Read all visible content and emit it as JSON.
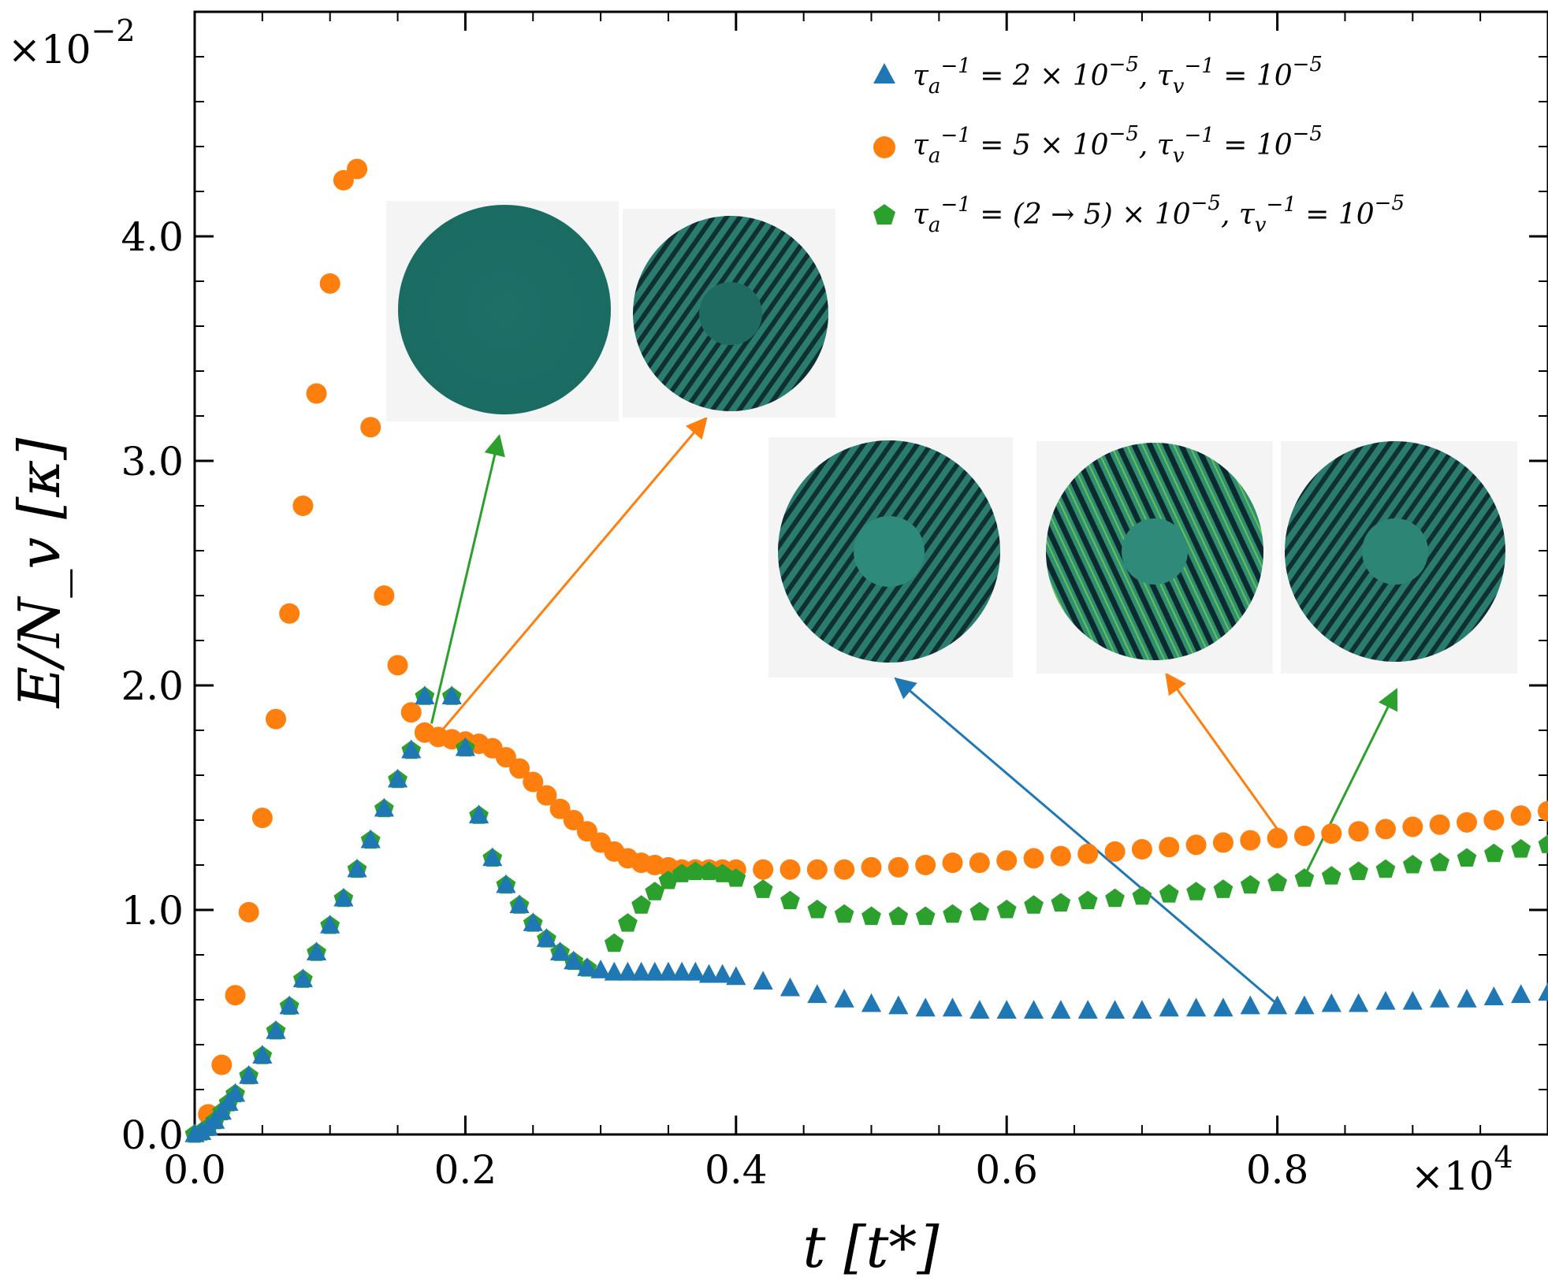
{
  "chart_data": {
    "type": "scatter",
    "title": "",
    "xlabel": "t [t*]",
    "ylabel": "E/N_v [κ]",
    "x_multiplier": "×10",
    "x_multiplier_exp": "4",
    "y_multiplier": "×10",
    "y_multiplier_exp": "−2",
    "xlim": [
      0.0,
      1.0
    ],
    "ylim": [
      0.0,
      5.0
    ],
    "x_ticks": [
      0.0,
      0.2,
      0.4,
      0.6,
      0.8
    ],
    "x_tick_labels": [
      "0.0",
      "0.2",
      "0.4",
      "0.6",
      "0.8"
    ],
    "y_ticks": [
      0.0,
      1.0,
      2.0,
      3.0,
      4.0
    ],
    "y_tick_labels": [
      "0.0",
      "1.0",
      "2.0",
      "3.0",
      "4.0"
    ],
    "legend_position": "top-right",
    "series": [
      {
        "name": "τa⁻¹ = 2 × 10⁻⁵, τv⁻¹ = 10⁻⁵",
        "legend_parts": [
          "τ",
          "a",
          "−1",
          " = 2 × 10",
          "−5",
          ", τ",
          "v",
          "−1",
          " = 10",
          "−5"
        ],
        "color": "#1f77b4",
        "marker": "triangle",
        "x": [
          0.0,
          0.005,
          0.01,
          0.015,
          0.02,
          0.025,
          0.03,
          0.04,
          0.05,
          0.06,
          0.07,
          0.08,
          0.09,
          0.1,
          0.11,
          0.12,
          0.13,
          0.14,
          0.15,
          0.16,
          0.17,
          0.19,
          0.2,
          0.21,
          0.22,
          0.23,
          0.24,
          0.25,
          0.26,
          0.27,
          0.28,
          0.29,
          0.3,
          0.31,
          0.32,
          0.33,
          0.34,
          0.35,
          0.36,
          0.37,
          0.38,
          0.39,
          0.4,
          0.42,
          0.44,
          0.46,
          0.48,
          0.5,
          0.52,
          0.54,
          0.56,
          0.58,
          0.6,
          0.62,
          0.64,
          0.66,
          0.68,
          0.7,
          0.72,
          0.74,
          0.76,
          0.78,
          0.8,
          0.82,
          0.84,
          0.86,
          0.88,
          0.9,
          0.92,
          0.94,
          0.96,
          0.98,
          1.0
        ],
        "y": [
          0.0,
          0.01,
          0.03,
          0.06,
          0.1,
          0.14,
          0.18,
          0.26,
          0.35,
          0.46,
          0.57,
          0.69,
          0.81,
          0.93,
          1.05,
          1.18,
          1.31,
          1.45,
          1.58,
          1.71,
          1.95,
          1.95,
          1.72,
          1.42,
          1.23,
          1.11,
          1.02,
          0.94,
          0.87,
          0.81,
          0.77,
          0.74,
          0.73,
          0.72,
          0.72,
          0.72,
          0.72,
          0.72,
          0.72,
          0.72,
          0.71,
          0.71,
          0.7,
          0.68,
          0.65,
          0.62,
          0.6,
          0.58,
          0.57,
          0.56,
          0.56,
          0.55,
          0.55,
          0.55,
          0.55,
          0.55,
          0.55,
          0.55,
          0.56,
          0.56,
          0.56,
          0.57,
          0.57,
          0.57,
          0.58,
          0.58,
          0.59,
          0.59,
          0.6,
          0.6,
          0.61,
          0.62,
          0.63
        ]
      },
      {
        "name": "τa⁻¹ = 5 × 10⁻⁵, τv⁻¹ = 10⁻⁵",
        "legend_parts": [
          "τ",
          "a",
          "−1",
          " = 5 × 10",
          "−5",
          ", τ",
          "v",
          "−1",
          " = 10",
          "−5"
        ],
        "color": "#ff7f0e",
        "marker": "circle",
        "x": [
          0.01,
          0.02,
          0.03,
          0.04,
          0.05,
          0.06,
          0.07,
          0.08,
          0.09,
          0.1,
          0.11,
          0.12,
          0.13,
          0.14,
          0.15,
          0.16,
          0.17,
          0.18,
          0.19,
          0.2,
          0.21,
          0.22,
          0.23,
          0.24,
          0.25,
          0.26,
          0.27,
          0.28,
          0.29,
          0.3,
          0.31,
          0.32,
          0.33,
          0.34,
          0.35,
          0.36,
          0.37,
          0.38,
          0.39,
          0.4,
          0.42,
          0.44,
          0.46,
          0.48,
          0.5,
          0.52,
          0.54,
          0.56,
          0.58,
          0.6,
          0.62,
          0.64,
          0.66,
          0.68,
          0.7,
          0.72,
          0.74,
          0.76,
          0.78,
          0.8,
          0.82,
          0.84,
          0.86,
          0.88,
          0.9,
          0.92,
          0.94,
          0.96,
          0.98,
          1.0
        ],
        "y": [
          0.09,
          0.31,
          0.62,
          0.99,
          1.41,
          1.85,
          2.32,
          2.8,
          3.3,
          3.79,
          4.25,
          4.3,
          3.15,
          2.4,
          2.09,
          1.88,
          1.79,
          1.77,
          1.76,
          1.75,
          1.74,
          1.72,
          1.68,
          1.63,
          1.57,
          1.51,
          1.45,
          1.4,
          1.35,
          1.3,
          1.26,
          1.23,
          1.21,
          1.2,
          1.19,
          1.18,
          1.18,
          1.18,
          1.18,
          1.18,
          1.18,
          1.18,
          1.18,
          1.18,
          1.19,
          1.19,
          1.2,
          1.21,
          1.21,
          1.22,
          1.23,
          1.24,
          1.25,
          1.26,
          1.27,
          1.28,
          1.29,
          1.3,
          1.31,
          1.32,
          1.33,
          1.34,
          1.35,
          1.36,
          1.37,
          1.38,
          1.39,
          1.4,
          1.42,
          1.44
        ]
      },
      {
        "name": "τa⁻¹ = (2 → 5) × 10⁻⁵, τv⁻¹ = 10⁻⁵",
        "legend_parts": [
          "τ",
          "a",
          "−1",
          " = (2 → 5) × 10",
          "−5",
          ", τ",
          "v",
          "−1",
          " = 10",
          "−5"
        ],
        "color": "#2ca02c",
        "marker": "pentagon",
        "x": [
          0.0,
          0.005,
          0.01,
          0.015,
          0.02,
          0.025,
          0.03,
          0.04,
          0.05,
          0.06,
          0.07,
          0.08,
          0.09,
          0.1,
          0.11,
          0.12,
          0.13,
          0.14,
          0.15,
          0.16,
          0.17,
          0.19,
          0.2,
          0.21,
          0.22,
          0.23,
          0.24,
          0.25,
          0.26,
          0.27,
          0.28,
          0.29,
          0.31,
          0.32,
          0.33,
          0.34,
          0.35,
          0.36,
          0.37,
          0.38,
          0.39,
          0.4,
          0.42,
          0.44,
          0.46,
          0.48,
          0.5,
          0.52,
          0.54,
          0.56,
          0.58,
          0.6,
          0.62,
          0.64,
          0.66,
          0.68,
          0.7,
          0.72,
          0.74,
          0.76,
          0.78,
          0.8,
          0.82,
          0.84,
          0.86,
          0.88,
          0.9,
          0.92,
          0.94,
          0.96,
          0.98,
          1.0
        ],
        "y": [
          0.0,
          0.01,
          0.03,
          0.06,
          0.1,
          0.14,
          0.18,
          0.26,
          0.35,
          0.46,
          0.57,
          0.69,
          0.81,
          0.93,
          1.05,
          1.18,
          1.31,
          1.45,
          1.58,
          1.71,
          1.95,
          1.95,
          1.72,
          1.42,
          1.23,
          1.11,
          1.02,
          0.94,
          0.87,
          0.81,
          0.77,
          0.74,
          0.85,
          0.94,
          1.02,
          1.08,
          1.13,
          1.16,
          1.17,
          1.17,
          1.16,
          1.14,
          1.09,
          1.04,
          1.0,
          0.98,
          0.97,
          0.97,
          0.97,
          0.98,
          0.99,
          1.0,
          1.02,
          1.03,
          1.04,
          1.05,
          1.06,
          1.07,
          1.08,
          1.09,
          1.11,
          1.12,
          1.14,
          1.15,
          1.17,
          1.18,
          1.2,
          1.21,
          1.23,
          1.25,
          1.27,
          1.29
        ]
      }
    ],
    "annotations": [
      {
        "name": "arrow-flat-state",
        "color": "#2ca02c",
        "from": [
          0.175,
          1.83
        ],
        "to": [
          0.225,
          3.11
        ]
      },
      {
        "name": "arrow-wrinkle-onset",
        "color": "#ff7f0e",
        "from": [
          0.18,
          1.78
        ],
        "to": [
          0.378,
          3.19
        ]
      },
      {
        "name": "arrow-blue-late",
        "color": "#1f77b4",
        "from": [
          0.8,
          0.58
        ],
        "to": [
          0.518,
          2.03
        ]
      },
      {
        "name": "arrow-orange-late",
        "color": "#ff7f0e",
        "from": [
          0.8,
          1.36
        ],
        "to": [
          0.718,
          2.05
        ]
      },
      {
        "name": "arrow-green-late",
        "color": "#2ca02c",
        "from": [
          0.82,
          1.15
        ],
        "to": [
          0.888,
          1.98
        ]
      }
    ]
  }
}
